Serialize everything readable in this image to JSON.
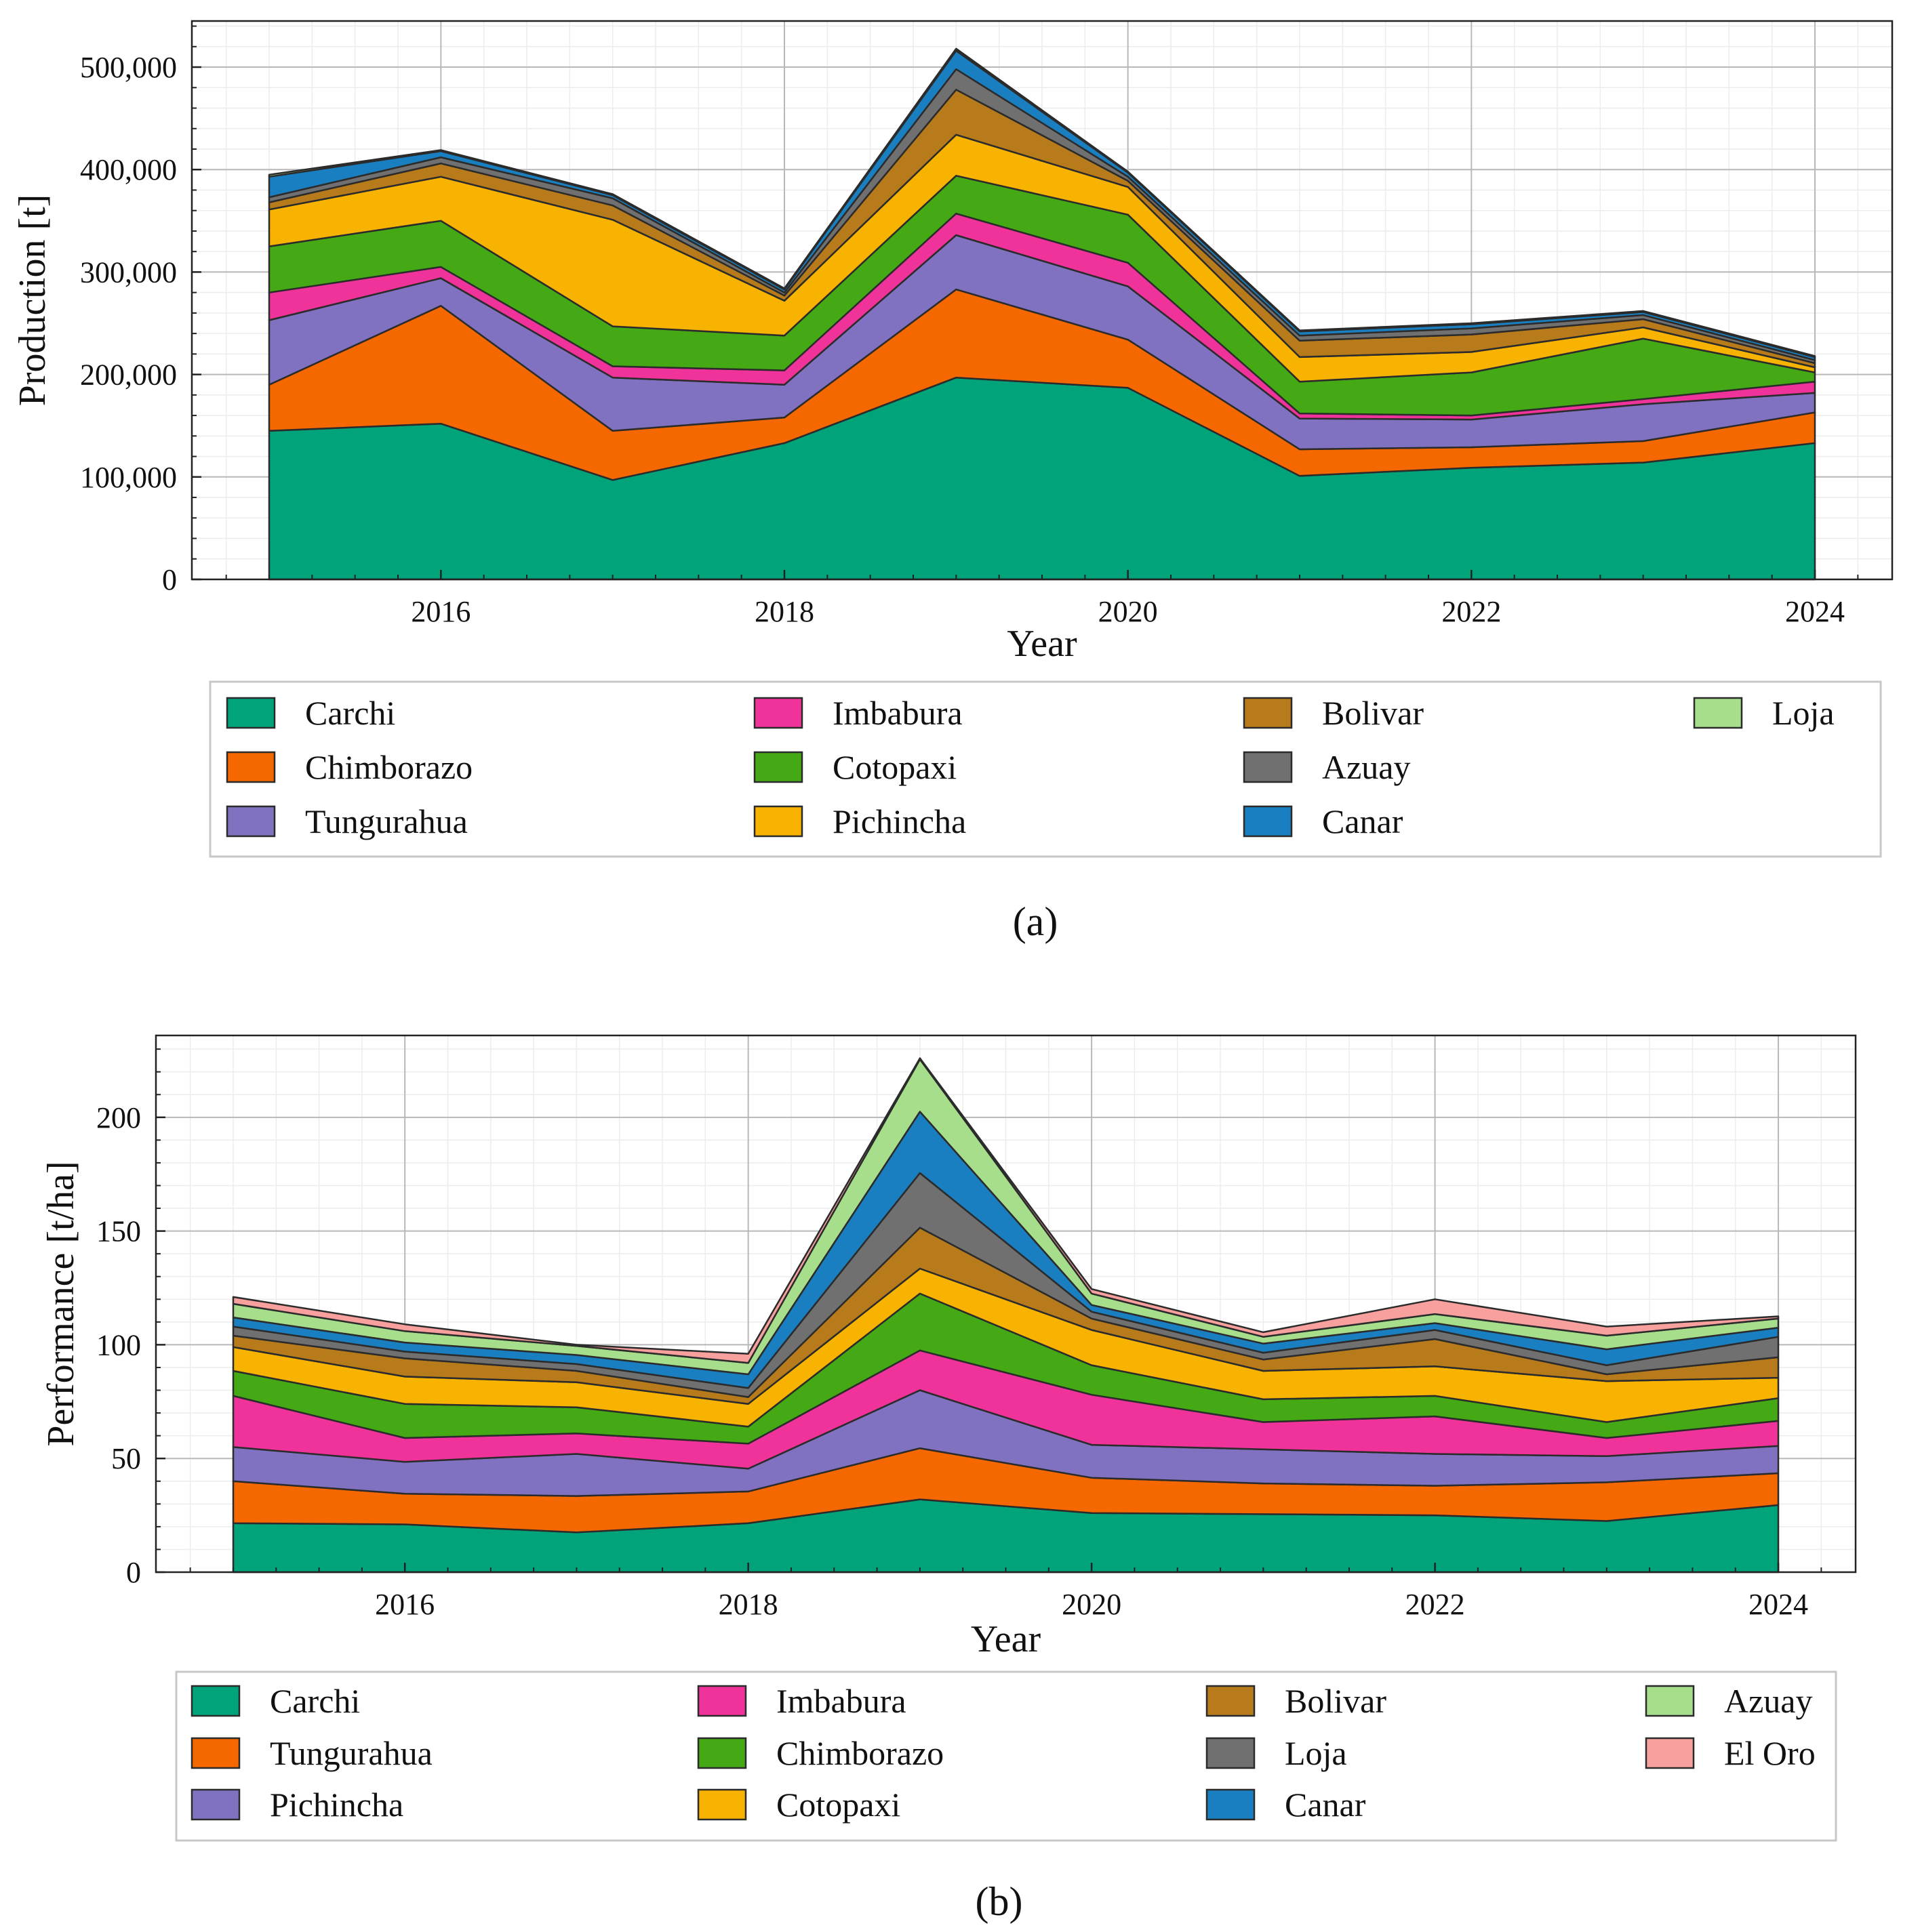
{
  "chart_data": [
    {
      "type": "area",
      "stacked": true,
      "panel_label": "(a)",
      "xlabel": "Year",
      "ylabel": "Production [t]",
      "xlim": [
        2014.55,
        2024.45
      ],
      "ylim": [
        0,
        545000
      ],
      "x_ticks": [
        2016,
        2018,
        2020,
        2022,
        2024
      ],
      "x_tick_labels": [
        "2016",
        "2018",
        "2020",
        "2022",
        "2024"
      ],
      "y_ticks": [
        0,
        100000,
        200000,
        300000,
        400000,
        500000
      ],
      "y_tick_labels": [
        "0",
        "100,000",
        "200,000",
        "300,000",
        "400,000",
        "500,000"
      ],
      "grid": true,
      "legend_position": "bottom",
      "x": [
        2015,
        2016,
        2017,
        2018,
        2019,
        2020,
        2021,
        2022,
        2023,
        2024
      ],
      "series": [
        {
          "name": "Carchi",
          "color": "#00a37a",
          "values": [
            145000,
            152000,
            97000,
            133000,
            197000,
            187000,
            101000,
            109000,
            114000,
            133000
          ]
        },
        {
          "name": "Chimborazo",
          "color": "#f56800",
          "values": [
            45000,
            115000,
            48000,
            25000,
            86000,
            47000,
            26000,
            20000,
            21000,
            30000
          ]
        },
        {
          "name": "Tungurahua",
          "color": "#8072c0",
          "values": [
            63000,
            27000,
            52000,
            32000,
            53000,
            52000,
            30000,
            27000,
            36000,
            19000
          ]
        },
        {
          "name": "Imbabura",
          "color": "#f0339a",
          "values": [
            27000,
            11000,
            11000,
            14000,
            21000,
            23000,
            5000,
            4000,
            5000,
            11000
          ]
        },
        {
          "name": "Cotopaxi",
          "color": "#44a915",
          "values": [
            45000,
            45000,
            39000,
            34000,
            37000,
            47000,
            31000,
            42000,
            59000,
            9000
          ]
        },
        {
          "name": "Pichincha",
          "color": "#f7b300",
          "values": [
            36000,
            43000,
            104000,
            34000,
            40000,
            27000,
            24000,
            20000,
            11000,
            5000
          ]
        },
        {
          "name": "Bolivar",
          "color": "#b87b1c",
          "values": [
            7000,
            13000,
            14000,
            5000,
            44000,
            6000,
            16000,
            17000,
            8000,
            4000
          ]
        },
        {
          "name": "Azuay",
          "color": "#707070",
          "values": [
            5000,
            6000,
            7000,
            3000,
            20000,
            4000,
            5000,
            6000,
            4000,
            3000
          ]
        },
        {
          "name": "Canar",
          "color": "#1a7fc0",
          "values": [
            20000,
            6000,
            3000,
            3000,
            18000,
            4000,
            4000,
            4000,
            3000,
            3000
          ]
        },
        {
          "name": "Loja",
          "color": "#a6de8c",
          "values": [
            2000,
            1000,
            1000,
            1000,
            2000,
            1000,
            1000,
            1000,
            1000,
            1000
          ]
        }
      ]
    },
    {
      "type": "area",
      "stacked": true,
      "panel_label": "(b)",
      "xlabel": "Year",
      "ylabel": "Performance [t/ha]",
      "xlim": [
        2014.55,
        2024.45
      ],
      "ylim": [
        0,
        236
      ],
      "x_ticks": [
        2016,
        2018,
        2020,
        2022,
        2024
      ],
      "x_tick_labels": [
        "2016",
        "2018",
        "2020",
        "2022",
        "2024"
      ],
      "y_ticks": [
        0,
        50,
        100,
        150,
        200
      ],
      "y_tick_labels": [
        "0",
        "50",
        "100",
        "150",
        "200"
      ],
      "grid": true,
      "legend_position": "bottom",
      "x": [
        2015,
        2016,
        2017,
        2018,
        2019,
        2020,
        2021,
        2022,
        2023,
        2024
      ],
      "series": [
        {
          "name": "Carchi",
          "color": "#00a37a",
          "values": [
            21.5,
            21,
            17.5,
            21.5,
            32,
            26,
            25.5,
            25,
            22.5,
            29.5
          ]
        },
        {
          "name": "Tungurahua",
          "color": "#f56800",
          "values": [
            18.5,
            13.5,
            16,
            14,
            22.5,
            15.5,
            13.5,
            13,
            17,
            14
          ]
        },
        {
          "name": "Pichincha",
          "color": "#8072c0",
          "values": [
            15,
            14,
            18.5,
            10,
            25.5,
            14.5,
            15,
            14,
            11.5,
            12
          ]
        },
        {
          "name": "Imbabura",
          "color": "#f0339a",
          "values": [
            22.5,
            10.5,
            9,
            11,
            17.5,
            22,
            12,
            16.5,
            8,
            11
          ]
        },
        {
          "name": "Chimborazo",
          "color": "#44a915",
          "values": [
            11,
            15,
            11.5,
            7.5,
            25,
            13,
            10,
            9,
            7,
            10
          ]
        },
        {
          "name": "Cotopaxi",
          "color": "#f7b300",
          "values": [
            10.5,
            12,
            11,
            10,
            11,
            15.5,
            12.5,
            13,
            18,
            9
          ]
        },
        {
          "name": "Bolivar",
          "color": "#b87b1c",
          "values": [
            5,
            8,
            5,
            3,
            18,
            5,
            5,
            12,
            3,
            9
          ]
        },
        {
          "name": "Loja",
          "color": "#707070",
          "values": [
            4,
            3,
            3,
            4,
            24,
            3,
            3,
            4,
            4,
            9
          ]
        },
        {
          "name": "Canar",
          "color": "#1a7fc0",
          "values": [
            4,
            4,
            4,
            6,
            27,
            3,
            4,
            3,
            7,
            4
          ]
        },
        {
          "name": "Azuay",
          "color": "#a6de8c",
          "values": [
            6,
            5,
            4,
            5,
            23,
            5,
            3,
            4,
            6,
            4
          ]
        },
        {
          "name": "El Oro",
          "color": "#f7a09e",
          "values": [
            3,
            3,
            0.5,
            4,
            0.5,
            2,
            2,
            6.5,
            4,
            1
          ]
        }
      ]
    }
  ]
}
